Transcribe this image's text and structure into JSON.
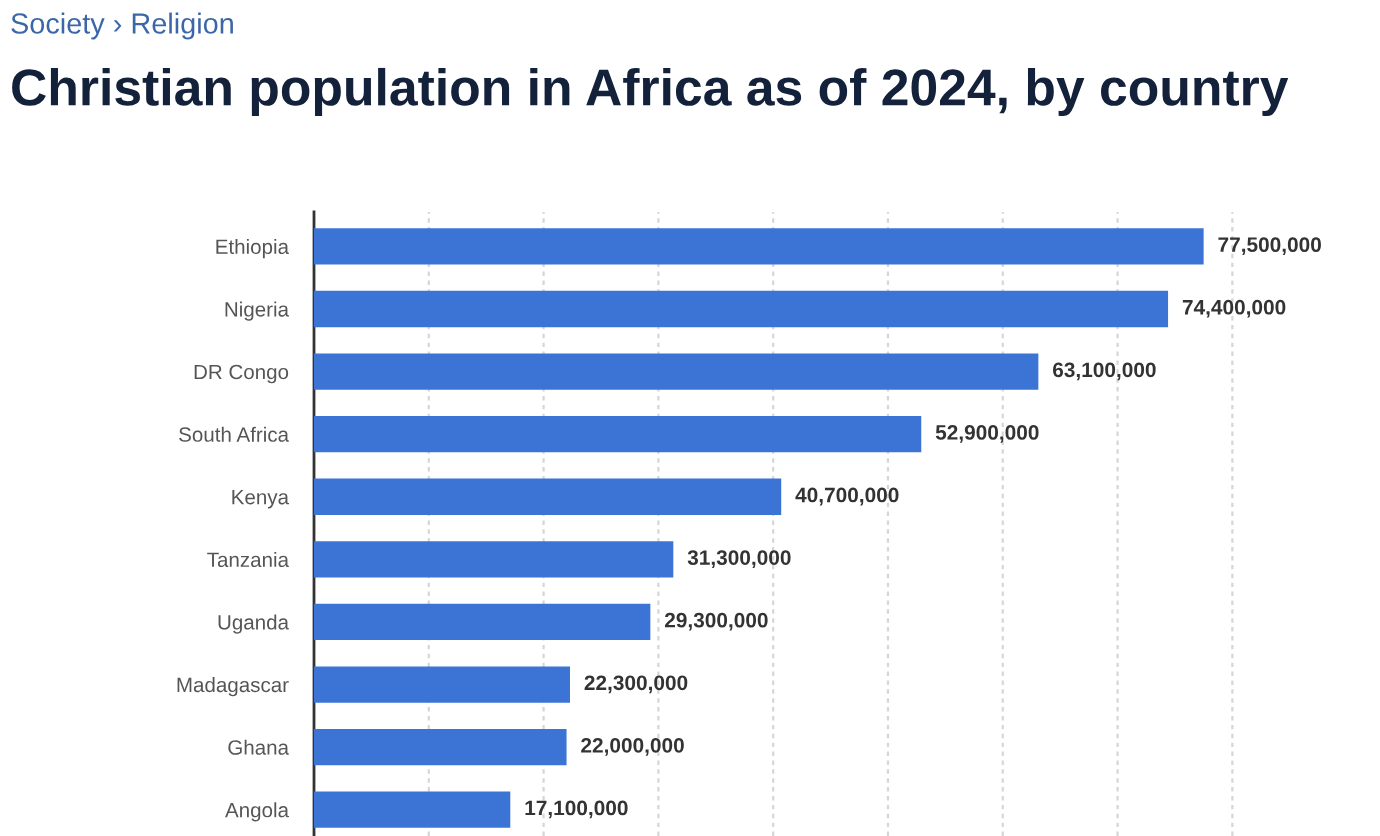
{
  "chart_data": {
    "type": "bar",
    "orientation": "horizontal",
    "title": "Christian population in Africa as of 2024, by country",
    "annotations": [
      "Society › Religion"
    ],
    "categories": [
      "Ethiopia",
      "Nigeria",
      "DR Congo",
      "South Africa",
      "Kenya",
      "Tanzania",
      "Uganda",
      "Madagascar",
      "Ghana",
      "Angola"
    ],
    "values": [
      77500000,
      74400000,
      63100000,
      52900000,
      40700000,
      31300000,
      29300000,
      22300000,
      22000000,
      17100000
    ],
    "value_labels": [
      "77,500,000",
      "74,400,000",
      "63,100,000",
      "52,900,000",
      "40,700,000",
      "31,300,000",
      "29,300,000",
      "22,300,000",
      "22,000,000",
      "17,100,000"
    ],
    "color": "#3c74d6",
    "grid": "x",
    "tick_labels": "y"
  }
}
